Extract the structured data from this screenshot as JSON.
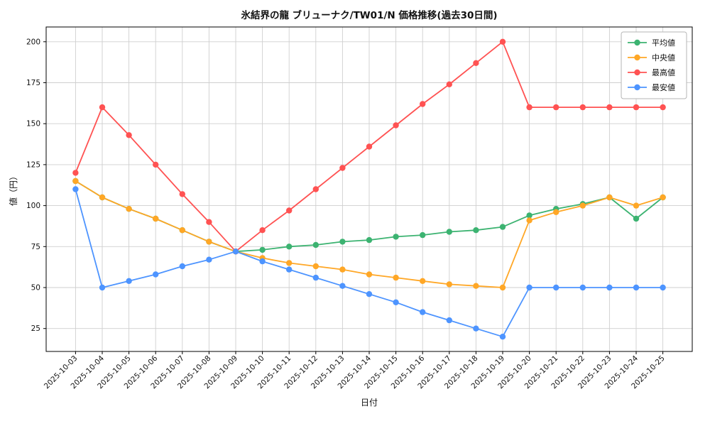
{
  "chart_data": {
    "type": "line",
    "title": "氷結界の龍 ブリューナク/TW01/N 価格推移(過去30日間)",
    "xlabel": "日付",
    "ylabel": "値（円）",
    "categories": [
      "2025-10-03",
      "2025-10-04",
      "2025-10-05",
      "2025-10-06",
      "2025-10-07",
      "2025-10-08",
      "2025-10-09",
      "2025-10-10",
      "2025-10-11",
      "2025-10-12",
      "2025-10-13",
      "2025-10-14",
      "2025-10-15",
      "2025-10-16",
      "2025-10-17",
      "2025-10-18",
      "2025-10-19",
      "2025-10-20",
      "2025-10-21",
      "2025-10-22",
      "2025-10-23",
      "2025-10-24",
      "2025-10-25"
    ],
    "series": [
      {
        "name": "平均値",
        "color": "#3cb371",
        "values": [
          115,
          105,
          98,
          92,
          85,
          78,
          72,
          73,
          75,
          76,
          78,
          79,
          81,
          82,
          84,
          85,
          87,
          94,
          98,
          101,
          105,
          92,
          105
        ]
      },
      {
        "name": "中央値",
        "color": "#ffa726",
        "values": [
          115,
          105,
          98,
          92,
          85,
          78,
          72,
          68,
          65,
          63,
          61,
          58,
          56,
          54,
          52,
          51,
          50,
          91,
          96,
          100,
          105,
          100,
          105
        ]
      },
      {
        "name": "最高値",
        "color": "#ff5252",
        "values": [
          120,
          160,
          143,
          125,
          107,
          90,
          72,
          85,
          97,
          110,
          123,
          136,
          149,
          162,
          174,
          187,
          200,
          160,
          160,
          160,
          160,
          160,
          160
        ]
      },
      {
        "name": "最安値",
        "color": "#4d94ff",
        "values": [
          110,
          50,
          54,
          58,
          63,
          67,
          72,
          66,
          61,
          56,
          51,
          46,
          41,
          35,
          30,
          25,
          20,
          50,
          50,
          50,
          50,
          50,
          50
        ]
      }
    ],
    "yticks": [
      25,
      50,
      75,
      100,
      125,
      150,
      175,
      200
    ],
    "ylim": [
      11,
      209
    ],
    "grid": true,
    "legend_position": "top-right",
    "grid_color": "#cfcfcf",
    "text_color": "#111111"
  }
}
